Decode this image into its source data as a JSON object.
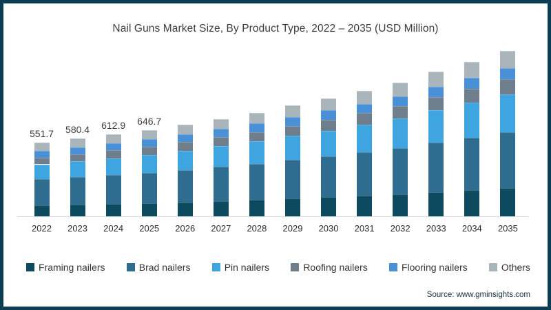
{
  "title": "Nail Guns Market Size, By Product Type, 2022 – 2035 (USD Million)",
  "source": "Source: www.gminsights.com",
  "colors": {
    "frame_border": "#0d3c55",
    "axis_line": "#d9d9d9",
    "title_text": "#3d3d3d",
    "data_label_text": "#3a3a3a"
  },
  "chart_data": {
    "type": "bar",
    "subtype": "stacked",
    "title": "Nail Guns Market Size, By Product Type, 2022 – 2035 (USD Million)",
    "xlabel": "",
    "ylabel": "USD Million",
    "grid": false,
    "legend_position": "bottom",
    "categories": [
      2022,
      2023,
      2024,
      2025,
      2026,
      2027,
      2028,
      2029,
      2030,
      2031,
      2032,
      2033,
      2034,
      2035
    ],
    "series": [
      {
        "name": "Framing nailers",
        "color": "#0e4a5f",
        "values": [
          80.7,
          86.0,
          91.9,
          98.2,
          105.6,
          113.4,
          122.0,
          132.1,
          142.2,
          153.0,
          164.9,
          180.0,
          194.2,
          210.1
        ]
      },
      {
        "name": "Brad nailers",
        "color": "#2e6d90",
        "values": [
          197.0,
          206.4,
          217.2,
          228.4,
          241.8,
          255.7,
          270.9,
          288.7,
          306.2,
          324.5,
          344.8,
          370.7,
          394.0,
          420.1
        ]
      },
      {
        "name": "Pin nailers",
        "color": "#3fa5e0",
        "values": [
          111.6,
          118.6,
          126.5,
          134.8,
          144.7,
          155.1,
          166.5,
          179.9,
          193.2,
          207.6,
          223.4,
          243.3,
          262.0,
          283.0
        ]
      },
      {
        "name": "Roofing nailers",
        "color": "#6e7e8c",
        "values": [
          51.4,
          54.0,
          56.9,
          59.9,
          63.5,
          67.3,
          71.4,
          76.1,
          80.8,
          85.8,
          91.3,
          98.4,
          104.7,
          111.8
        ]
      },
      {
        "name": "Flooring nailers",
        "color": "#4a90d6",
        "values": [
          51.4,
          53.0,
          54.9,
          56.6,
          59.0,
          61.2,
          63.6,
          66.6,
          69.2,
          71.8,
          74.8,
          78.7,
          81.8,
          85.3
        ]
      },
      {
        "name": "Others",
        "color": "#aab4bb",
        "values": [
          59.6,
          62.4,
          65.5,
          68.8,
          72.7,
          76.8,
          81.4,
          86.8,
          92.0,
          97.4,
          103.3,
          110.9,
          117.6,
          125.3
        ]
      }
    ],
    "totals": [
      551.7,
      580.4,
      612.9,
      646.7,
      687.3,
      729.5,
      775.8,
      830.2,
      883.6,
      940.1,
      1002.5,
      1082.0,
      1154.3,
      1235.6
    ],
    "data_labels": [
      "551.7",
      "580.4",
      "612.9",
      "646.7",
      null,
      null,
      null,
      null,
      null,
      null,
      null,
      null,
      null,
      null
    ]
  }
}
